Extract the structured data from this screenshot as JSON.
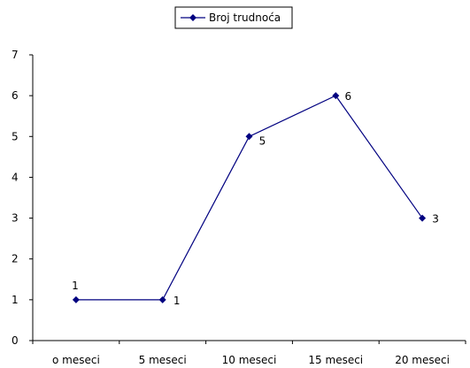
{
  "chart_data": {
    "type": "line",
    "categories": [
      "o meseci",
      "5 meseci",
      "10 meseci",
      "15 meseci",
      "20 meseci"
    ],
    "series": [
      {
        "name": "Broj trudnoća",
        "values": [
          1,
          1,
          5,
          6,
          3
        ],
        "color": "#000080"
      }
    ],
    "data_labels": [
      "1",
      "1",
      "5",
      "6",
      "3"
    ],
    "ylim": [
      0,
      7
    ],
    "yticks": [
      0,
      1,
      2,
      3,
      4,
      5,
      6,
      7
    ],
    "grid": false,
    "legend": "top",
    "marker": "diamond",
    "xlabel": "",
    "ylabel": "",
    "title": ""
  }
}
